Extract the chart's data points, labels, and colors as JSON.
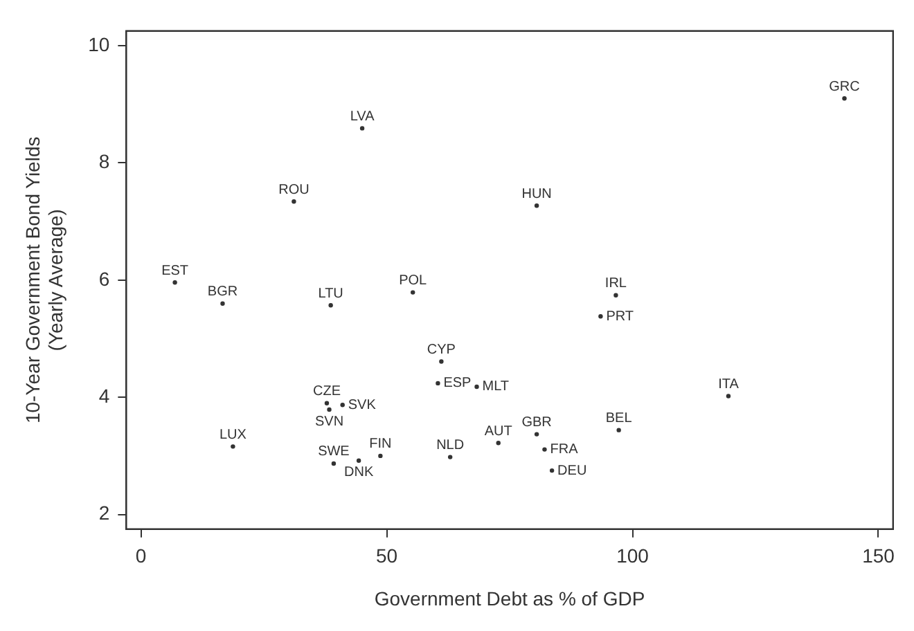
{
  "chart_data": {
    "type": "scatter",
    "xlabel": "Government Debt as % of GDP",
    "ylabel": "10-Year Government Bond Yields (Yearly Average)",
    "xlim": [
      -3,
      153
    ],
    "ylim": [
      1.75,
      10.25
    ],
    "xticks": [
      0,
      50,
      100,
      150
    ],
    "yticks": [
      2,
      4,
      6,
      8,
      10
    ],
    "grid": false,
    "legend": false,
    "marker": "circle",
    "series": [
      {
        "name": "GRC",
        "color": "#333333",
        "x": [
          143.1
        ],
        "values": [
          9.1
        ]
      },
      {
        "name": "LVA",
        "color": "#333333",
        "x": [
          45.0
        ],
        "values": [
          8.59
        ]
      },
      {
        "name": "ROU",
        "color": "#333333",
        "x": [
          31.1
        ],
        "values": [
          7.34
        ]
      },
      {
        "name": "EST",
        "color": "#333333",
        "x": [
          6.9
        ],
        "values": [
          5.96
        ]
      },
      {
        "name": "BGR",
        "color": "#333333",
        "x": [
          16.6
        ],
        "values": [
          5.6
        ]
      },
      {
        "name": "LTU",
        "color": "#333333",
        "x": [
          38.6
        ],
        "values": [
          5.57
        ]
      },
      {
        "name": "POL",
        "color": "#333333",
        "x": [
          55.3
        ],
        "values": [
          5.79
        ]
      },
      {
        "name": "HUN",
        "color": "#333333",
        "x": [
          80.5
        ],
        "values": [
          7.27
        ]
      },
      {
        "name": "IRL",
        "color": "#333333",
        "x": [
          96.6
        ],
        "values": [
          5.74
        ]
      },
      {
        "name": "PRT",
        "color": "#333333",
        "x": [
          93.5
        ],
        "values": [
          5.38
        ]
      },
      {
        "name": "CYP",
        "color": "#333333",
        "x": [
          61.1
        ],
        "values": [
          4.61
        ]
      },
      {
        "name": "ESP",
        "color": "#333333",
        "x": [
          60.4
        ],
        "values": [
          4.24
        ]
      },
      {
        "name": "MLT",
        "color": "#333333",
        "x": [
          68.3
        ],
        "values": [
          4.18
        ]
      },
      {
        "name": "CZE",
        "color": "#333333",
        "x": [
          37.8
        ],
        "values": [
          3.9
        ]
      },
      {
        "name": "SVK",
        "color": "#333333",
        "x": [
          41.0
        ],
        "values": [
          3.87
        ]
      },
      {
        "name": "SVN",
        "color": "#333333",
        "x": [
          38.3
        ],
        "values": [
          3.79
        ]
      },
      {
        "name": "LUX",
        "color": "#333333",
        "x": [
          18.7
        ],
        "values": [
          3.16
        ]
      },
      {
        "name": "SWE",
        "color": "#333333",
        "x": [
          39.2
        ],
        "values": [
          2.87
        ]
      },
      {
        "name": "DNK",
        "color": "#333333",
        "x": [
          44.3
        ],
        "values": [
          2.92
        ]
      },
      {
        "name": "FIN",
        "color": "#333333",
        "x": [
          48.7
        ],
        "values": [
          3.0
        ]
      },
      {
        "name": "NLD",
        "color": "#333333",
        "x": [
          62.9
        ],
        "values": [
          2.98
        ]
      },
      {
        "name": "AUT",
        "color": "#333333",
        "x": [
          72.7
        ],
        "values": [
          3.22
        ]
      },
      {
        "name": "GBR",
        "color": "#333333",
        "x": [
          80.5
        ],
        "values": [
          3.37
        ]
      },
      {
        "name": "FRA",
        "color": "#333333",
        "x": [
          82.1
        ],
        "values": [
          3.11
        ]
      },
      {
        "name": "DEU",
        "color": "#333333",
        "x": [
          83.6
        ],
        "values": [
          2.75
        ]
      },
      {
        "name": "BEL",
        "color": "#333333",
        "x": [
          97.2
        ],
        "values": [
          3.44
        ]
      },
      {
        "name": "ITA",
        "color": "#333333",
        "x": [
          119.5
        ],
        "values": [
          4.02
        ]
      }
    ]
  }
}
